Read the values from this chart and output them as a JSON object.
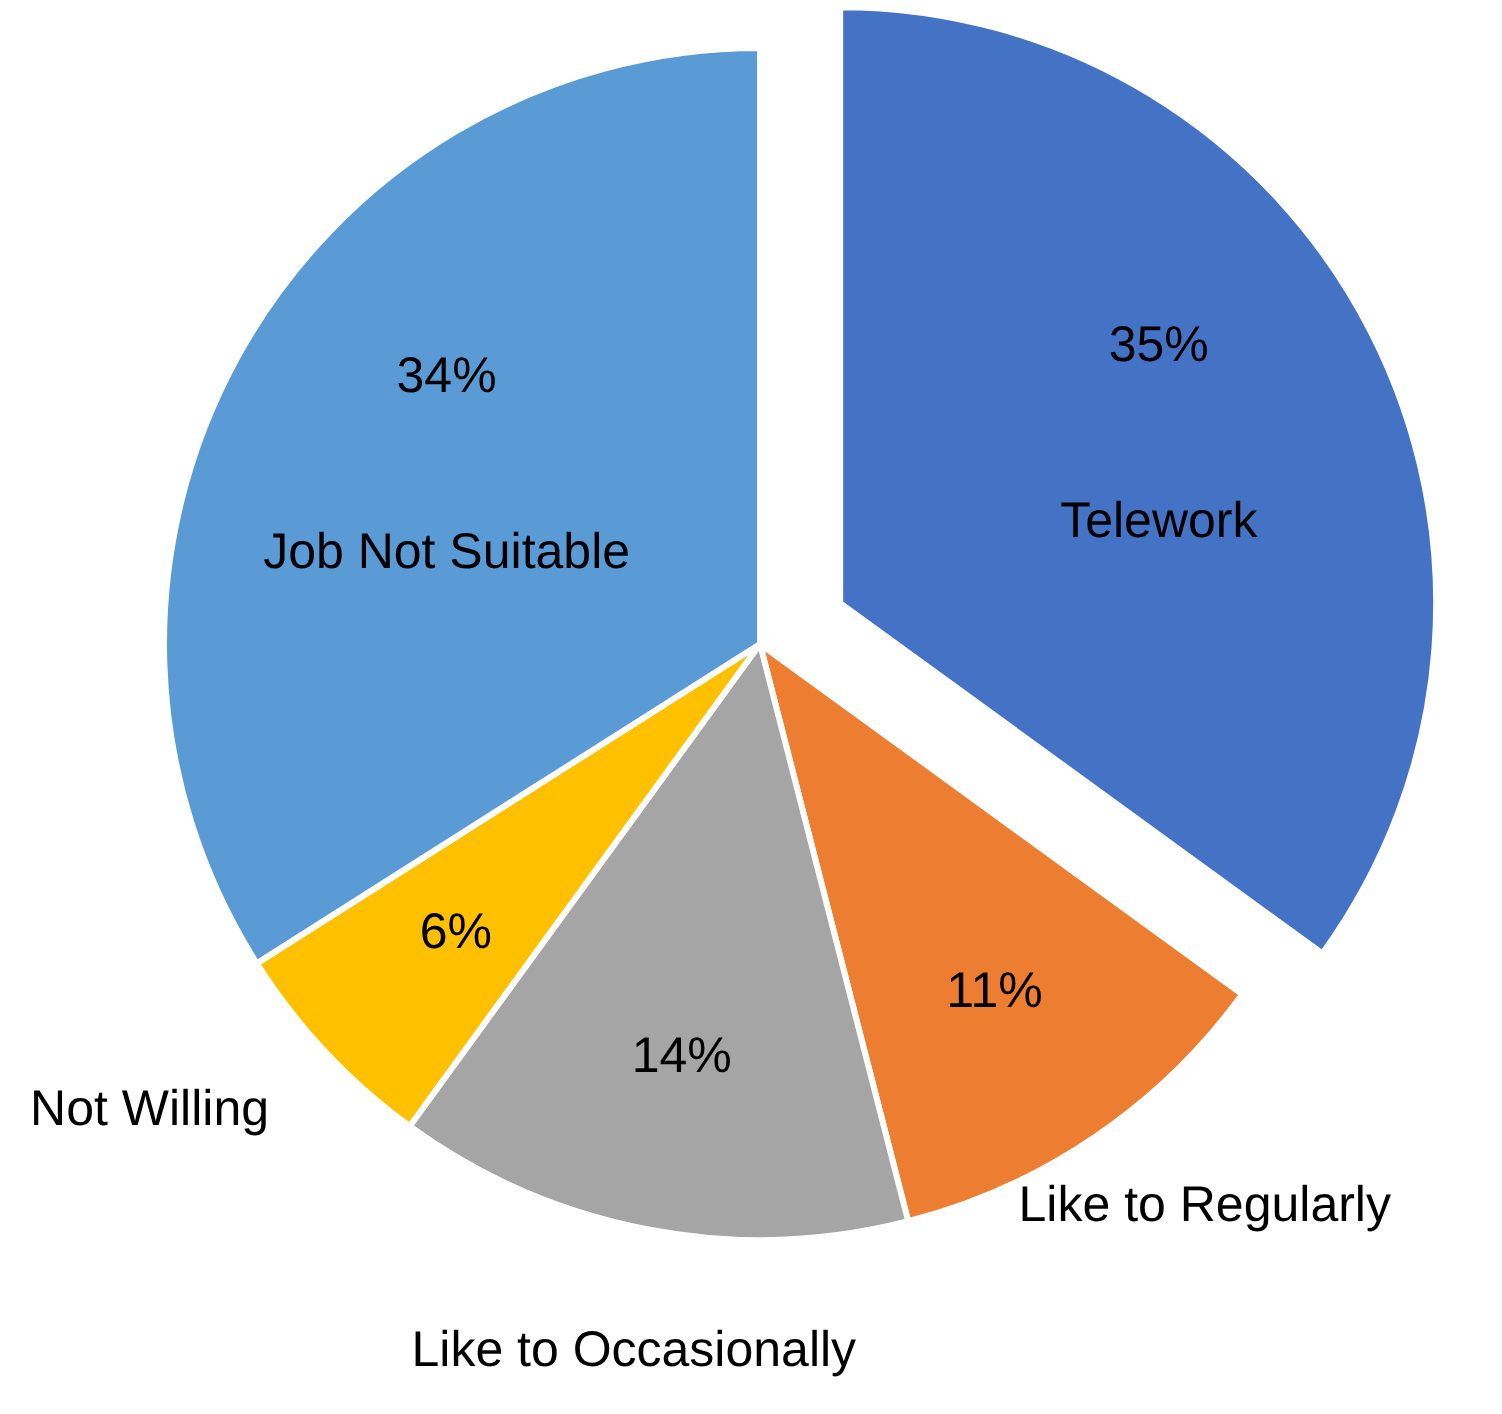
{
  "chart_data": {
    "type": "pie",
    "categories": [
      "Telework",
      "Like to Regularly",
      "Like to Occasionally",
      "Not Willing",
      "Job Not Suitable"
    ],
    "values": [
      35,
      11,
      14,
      6,
      34
    ],
    "colors": [
      "#4472c4",
      "#ed7d31",
      "#a5a5a5",
      "#ffc000",
      "#5b9bd5"
    ],
    "value_labels": [
      "35%",
      "11%",
      "14%",
      "6%",
      "34%"
    ]
  }
}
